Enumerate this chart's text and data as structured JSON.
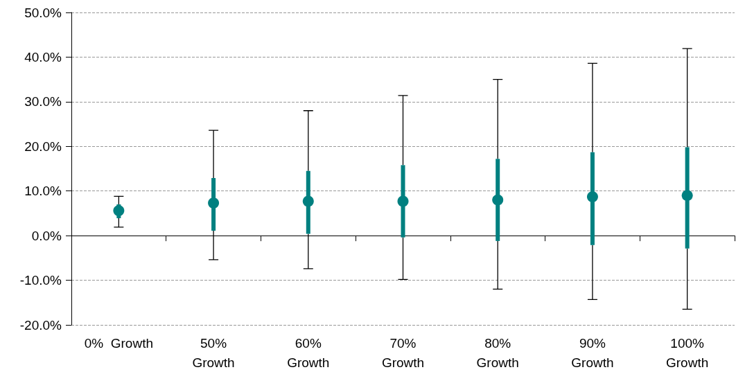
{
  "chart_data": {
    "type": "box",
    "categories": [
      "0%  Growth",
      "50%\nGrowth",
      "60%\nGrowth",
      "70%\nGrowth",
      "80%\nGrowth",
      "90%\nGrowth",
      "100%\nGrowth"
    ],
    "series": [
      {
        "color": "#008080",
        "boxes": [
          {
            "low": 1.9,
            "q1": 3.9,
            "median": 5.6,
            "q3": 7.0,
            "high": 8.8
          },
          {
            "low": -5.4,
            "q1": 1.1,
            "median": 7.3,
            "q3": 12.9,
            "high": 23.6
          },
          {
            "low": -7.4,
            "q1": 0.4,
            "median": 7.7,
            "q3": 14.5,
            "high": 28.0
          },
          {
            "low": -9.8,
            "q1": -0.4,
            "median": 7.7,
            "q3": 15.8,
            "high": 31.4
          },
          {
            "low": -12.0,
            "q1": -1.2,
            "median": 8.0,
            "q3": 17.2,
            "high": 35.0
          },
          {
            "low": -14.3,
            "q1": -2.1,
            "median": 8.7,
            "q3": 18.7,
            "high": 38.6
          },
          {
            "low": -16.5,
            "q1": -2.9,
            "median": 9.0,
            "q3": 19.8,
            "high": 41.9
          }
        ]
      }
    ],
    "ylim": [
      -20,
      50
    ],
    "yticks": [
      {
        "value": -20,
        "label": "-20.0%"
      },
      {
        "value": -10,
        "label": "-10.0%"
      },
      {
        "value": 0,
        "label": "0.0%"
      },
      {
        "value": 10,
        "label": "10.0%"
      },
      {
        "value": 20,
        "label": "20.0%"
      },
      {
        "value": 30,
        "label": "30.0%"
      },
      {
        "value": 40,
        "label": "40.0%"
      },
      {
        "value": 50,
        "label": "50.0%"
      }
    ],
    "grid": "y"
  }
}
